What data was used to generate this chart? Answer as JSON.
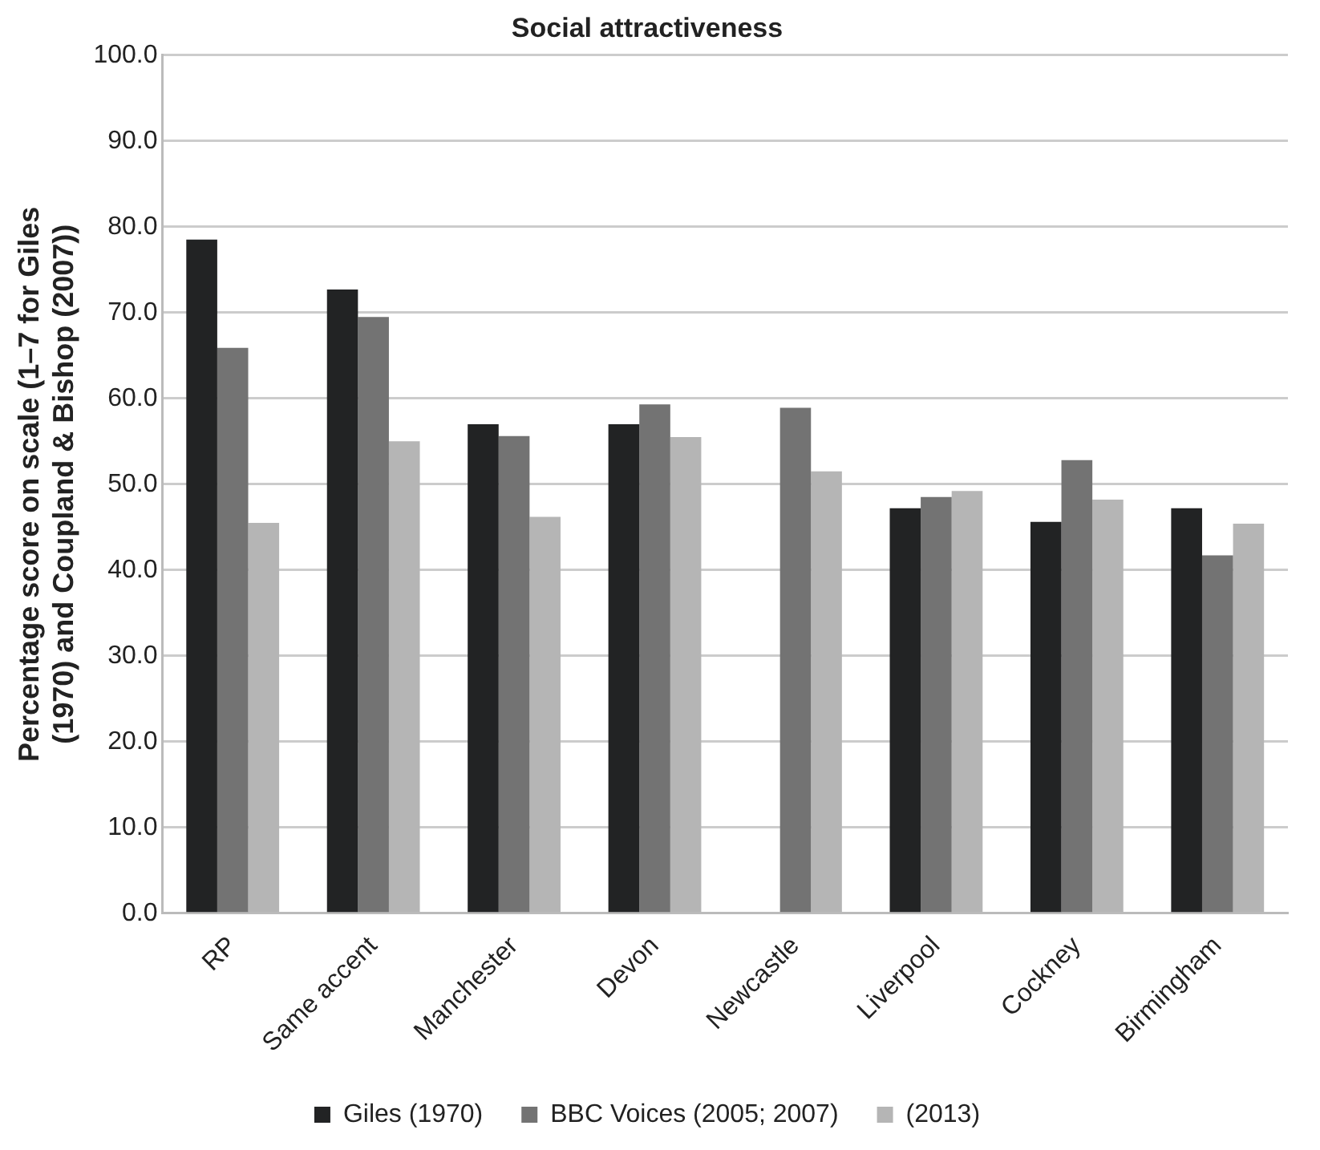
{
  "chart_data": {
    "type": "bar",
    "title": "Social attractiveness",
    "ylabel": "Percentage score on scale (1–7 for Giles (1970) and Coupland & Bishop (2007))",
    "categories": [
      "RP",
      "Same accent",
      "Manchester",
      "Devon",
      "Newcastle",
      "Liverpool",
      "Cockney",
      "Birmingham"
    ],
    "series": [
      {
        "name": "Giles (1970)",
        "color": "#222324",
        "values": [
          78.5,
          72.7,
          57.0,
          57.0,
          null,
          47.2,
          45.6,
          47.2
        ]
      },
      {
        "name": "BBC Voices (2005; 2007)",
        "color": "#737373",
        "values": [
          65.9,
          69.5,
          55.6,
          59.3,
          58.9,
          48.5,
          52.8,
          41.7
        ]
      },
      {
        "name": "(2013)",
        "color": "#b5b5b5",
        "values": [
          45.5,
          55.0,
          46.2,
          55.5,
          51.5,
          49.2,
          48.2,
          45.4
        ]
      }
    ],
    "ylim": [
      0,
      100
    ],
    "yticks": [
      {
        "value": 0,
        "label": "0.0"
      },
      {
        "value": 10,
        "label": "10.0"
      },
      {
        "value": 20,
        "label": "20.0"
      },
      {
        "value": 30,
        "label": "30.0"
      },
      {
        "value": 40,
        "label": "40.0"
      },
      {
        "value": 50,
        "label": "50.0"
      },
      {
        "value": 60,
        "label": "60.0"
      },
      {
        "value": 70,
        "label": "70.0"
      },
      {
        "value": 80,
        "label": "80.0"
      },
      {
        "value": 90,
        "label": "90.0"
      },
      {
        "value": 100,
        "label": "100.0"
      }
    ],
    "grid": "y",
    "legend": "bottom"
  }
}
